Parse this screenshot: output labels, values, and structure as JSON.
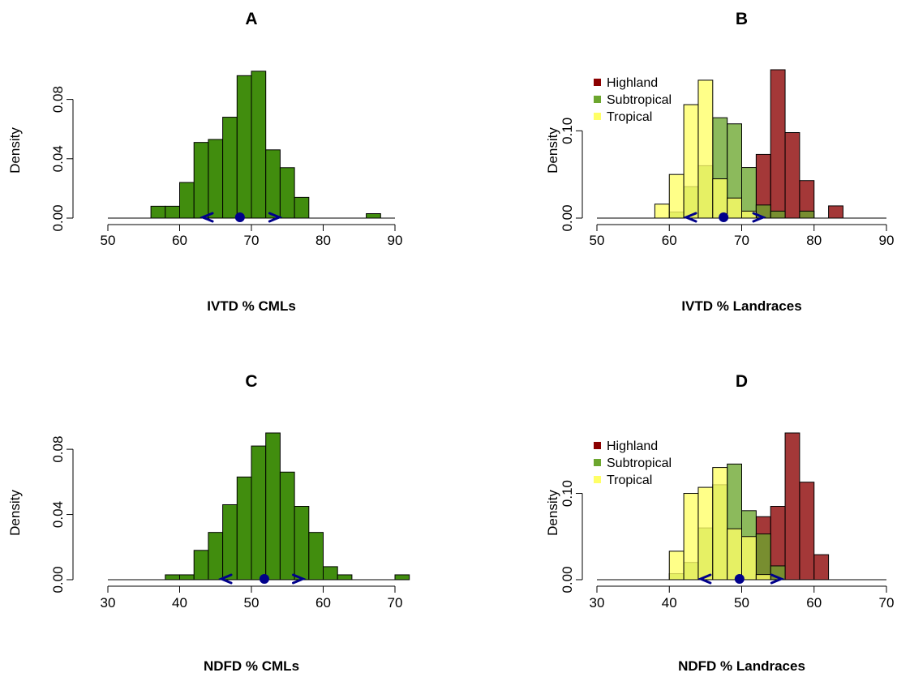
{
  "chart_data": [
    {
      "id": "A",
      "type": "bar",
      "title": "A",
      "xlabel": "IVTD % CMLs",
      "ylabel": "Density",
      "xlim": [
        50,
        90
      ],
      "ylim": [
        0,
        0.1
      ],
      "x_ticks": [
        "50",
        "60",
        "70",
        "80",
        "90"
      ],
      "y_ticks": [
        "0.00",
        "0.04",
        "0.08"
      ],
      "bin_width": 2,
      "bin_start": 56,
      "series": [
        {
          "color": "#418D0E",
          "values": [
            0.008,
            0.008,
            0.024,
            0.051,
            0.053,
            0.068,
            0.096,
            0.099,
            0.046,
            0.034,
            0.014,
            0,
            0,
            0,
            0,
            0.003
          ]
        }
      ],
      "markers": {
        "mean": 68.4,
        "ci": [
          63.9,
          73.2
        ],
        "color": "#00008B"
      }
    },
    {
      "id": "B",
      "type": "bar",
      "title": "B",
      "xlabel": "IVTD % Landraces",
      "ylabel": "Density",
      "xlim": [
        50,
        90
      ],
      "ylim": [
        0,
        0.17
      ],
      "x_ticks": [
        "50",
        "60",
        "70",
        "80",
        "90"
      ],
      "y_ticks": [
        "0.00",
        "0.10"
      ],
      "bin_width": 2,
      "bin_start": 58,
      "legend": {
        "placement": "top-left",
        "entries": [
          "Highland",
          "Subtropical",
          "Tropical"
        ]
      },
      "series": [
        {
          "name": "Highland",
          "color": "#8B0000",
          "values": [
            0,
            0,
            0,
            0,
            0,
            0,
            0,
            0.073,
            0.17,
            0.098,
            0.043,
            0,
            0.014
          ]
        },
        {
          "name": "Subtropical",
          "color": "#6CA62E",
          "values": [
            0,
            0.007,
            0.036,
            0.06,
            0.115,
            0.108,
            0.058,
            0.015,
            0.008,
            0,
            0.008,
            0,
            0
          ]
        },
        {
          "name": "Tropical",
          "color": "#FFFF66",
          "values": [
            0.016,
            0.05,
            0.13,
            0.158,
            0.045,
            0.023,
            0.008,
            0,
            0,
            0,
            0,
            0,
            0
          ]
        }
      ],
      "markers": {
        "mean": 67.5,
        "ci": [
          63.0,
          72.3
        ],
        "color": "#00008B"
      }
    },
    {
      "id": "C",
      "type": "bar",
      "title": "C",
      "xlabel": "NDFD % CMLs",
      "ylabel": "Density",
      "xlim": [
        30,
        70
      ],
      "ylim": [
        0,
        0.09
      ],
      "x_ticks": [
        "30",
        "40",
        "50",
        "60",
        "70"
      ],
      "y_ticks": [
        "0.00",
        "0.04",
        "0.08"
      ],
      "bin_width": 2,
      "bin_start": 38,
      "series": [
        {
          "color": "#418D0E",
          "values": [
            0.003,
            0.003,
            0.018,
            0.029,
            0.046,
            0.063,
            0.082,
            0.09,
            0.066,
            0.045,
            0.029,
            0.008,
            0.003,
            0,
            0,
            0,
            0.003
          ]
        }
      ],
      "markers": {
        "mean": 51.8,
        "ci": [
          46.5,
          56.5
        ],
        "color": "#00008B"
      }
    },
    {
      "id": "D",
      "type": "bar",
      "title": "D",
      "xlabel": "NDFD % Landraces",
      "ylabel": "Density",
      "xlim": [
        30,
        70
      ],
      "ylim": [
        0,
        0.17
      ],
      "x_ticks": [
        "30",
        "40",
        "50",
        "60",
        "70"
      ],
      "y_ticks": [
        "0.00",
        "0.10"
      ],
      "bin_width": 2,
      "bin_start": 40,
      "legend": {
        "placement": "top-left",
        "entries": [
          "Highland",
          "Subtropical",
          "Tropical"
        ]
      },
      "series": [
        {
          "name": "Highland",
          "color": "#8B0000",
          "values": [
            0,
            0,
            0,
            0,
            0,
            0,
            0.073,
            0.085,
            0.17,
            0.113,
            0.029
          ]
        },
        {
          "name": "Subtropical",
          "color": "#6CA62E",
          "values": [
            0.007,
            0.02,
            0.06,
            0.11,
            0.134,
            0.08,
            0.053,
            0.016,
            0,
            0,
            0
          ]
        },
        {
          "name": "Tropical",
          "color": "#FFFF66",
          "values": [
            0.033,
            0.1,
            0.107,
            0.13,
            0.059,
            0.05,
            0.006,
            0,
            0,
            0,
            0
          ]
        }
      ],
      "markers": {
        "mean": 49.7,
        "ci": [
          45.0,
          54.8
        ],
        "color": "#00008B"
      }
    }
  ]
}
